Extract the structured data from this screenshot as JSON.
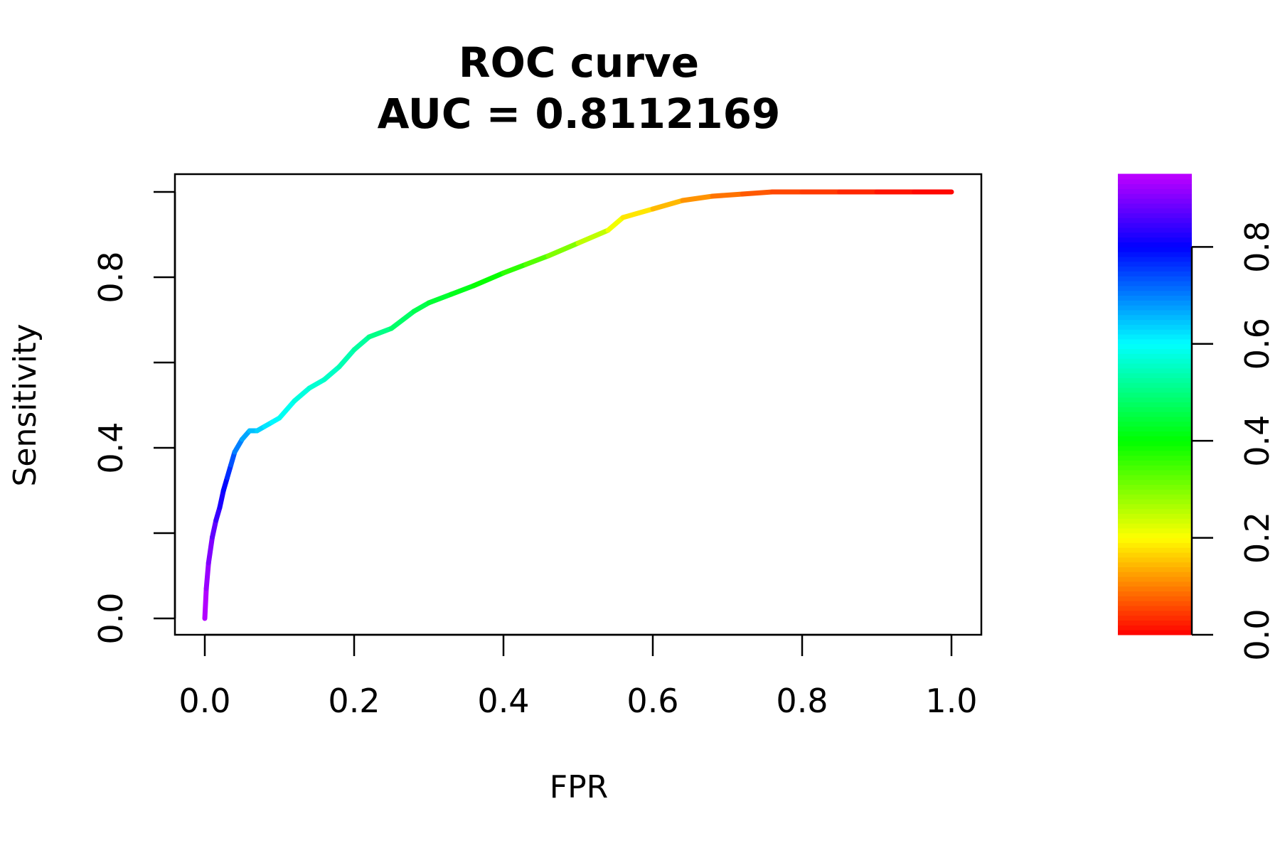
{
  "chart_data": {
    "type": "line",
    "title": "ROC curve",
    "subtitle": "AUC = 0.8112169",
    "xlabel": "FPR",
    "ylabel": "Sensitivity",
    "xlim": [
      0,
      1
    ],
    "ylim": [
      0,
      1
    ],
    "x_ticks": [
      "0.0",
      "0.2",
      "0.4",
      "0.6",
      "0.8",
      "1.0"
    ],
    "y_ticks": [
      "0.0",
      "0.4",
      "0.8"
    ],
    "y_tick_values": [
      0,
      0.2,
      0.4,
      0.6,
      0.8,
      1.0
    ],
    "grid": false,
    "colorbar": {
      "position": "right",
      "range": [
        0,
        0.95
      ],
      "tick_values": [
        0,
        0.2,
        0.4,
        0.6,
        0.8
      ],
      "tick_labels": [
        "0.0",
        "0.2",
        "0.4",
        "0.6",
        "0.8"
      ],
      "colormap": "rainbow (red at 0 through yellow, green, cyan, blue to magenta at top)"
    },
    "series": [
      {
        "x": [
          0.0,
          0.002,
          0.005,
          0.01,
          0.015,
          0.02,
          0.025,
          0.03,
          0.035,
          0.04,
          0.05,
          0.06,
          0.07,
          0.08,
          0.09,
          0.1,
          0.12,
          0.14,
          0.16,
          0.18,
          0.2,
          0.22,
          0.25,
          0.28,
          0.3,
          0.33,
          0.36,
          0.4,
          0.43,
          0.46,
          0.5,
          0.54,
          0.56,
          0.6,
          0.64,
          0.68,
          0.72,
          0.76,
          0.8,
          0.85,
          0.9,
          0.95,
          1.0
        ],
        "y": [
          0.0,
          0.07,
          0.13,
          0.19,
          0.23,
          0.26,
          0.3,
          0.33,
          0.36,
          0.39,
          0.42,
          0.44,
          0.44,
          0.45,
          0.46,
          0.47,
          0.51,
          0.54,
          0.56,
          0.59,
          0.63,
          0.66,
          0.68,
          0.72,
          0.74,
          0.76,
          0.78,
          0.81,
          0.83,
          0.85,
          0.88,
          0.91,
          0.94,
          0.96,
          0.98,
          0.99,
          0.995,
          1.0,
          1.0,
          1.0,
          1.0,
          1.0,
          1.0
        ],
        "cutoff": [
          0.95,
          0.93,
          0.91,
          0.89,
          0.86,
          0.83,
          0.81,
          0.78,
          0.75,
          0.72,
          0.68,
          0.66,
          0.64,
          0.63,
          0.61,
          0.6,
          0.58,
          0.57,
          0.56,
          0.55,
          0.53,
          0.52,
          0.49,
          0.47,
          0.45,
          0.43,
          0.41,
          0.38,
          0.35,
          0.32,
          0.28,
          0.22,
          0.2,
          0.16,
          0.13,
          0.1,
          0.08,
          0.06,
          0.05,
          0.04,
          0.02,
          0.01,
          0.0
        ]
      }
    ]
  }
}
